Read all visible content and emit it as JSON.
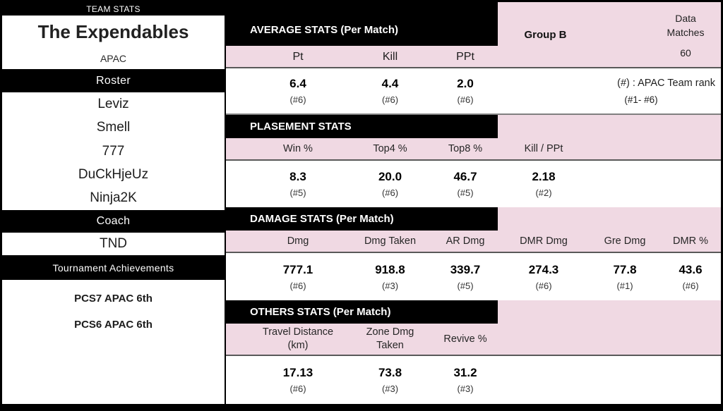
{
  "colors": {
    "pink": "#F0D9E3",
    "bar": "#000000",
    "separator": "#595959"
  },
  "left_panel": {
    "team_stats_label": "TEAM STATS",
    "team_name": "The Expendables",
    "region": "APAC",
    "roster_label": "Roster",
    "players": [
      "Leviz",
      "Smell",
      "777",
      "DuCkHjeUz",
      "Ninja2K"
    ],
    "coach_label": "Coach",
    "coach_name": "TND",
    "achievements_label": "Tournament Achievements",
    "achievements": [
      "PCS7 APAC 6th",
      "PCS6 APAC 6th"
    ]
  },
  "info": {
    "group": "Group B",
    "data_matches_line1": "Data",
    "data_matches_line2": "Matches",
    "data_matches_value": "60",
    "rank_note": "(#) : APAC Team rank",
    "rank_range": "(#1- #6)"
  },
  "sections": {
    "average": {
      "title": "AVERAGE STATS (Per Match)",
      "cols": [
        {
          "label": "Pt",
          "value": "6.4",
          "rank": "(#6)"
        },
        {
          "label": "Kill",
          "value": "4.4",
          "rank": "(#6)"
        },
        {
          "label": "PPt",
          "value": "2.0",
          "rank": "(#6)"
        }
      ]
    },
    "placement": {
      "title": "PLASEMENT STATS",
      "cols": [
        {
          "label": "Win %",
          "value": "8.3",
          "rank": "(#5)"
        },
        {
          "label": "Top4 %",
          "value": "20.0",
          "rank": "(#6)"
        },
        {
          "label": "Top8 %",
          "value": "46.7",
          "rank": "(#5)"
        },
        {
          "label": "Kill / PPt",
          "value": "2.18",
          "rank": "(#2)"
        }
      ]
    },
    "damage": {
      "title": "DAMAGE STATS (Per Match)",
      "cols": [
        {
          "label": "Dmg",
          "value": "777.1",
          "rank": "(#6)"
        },
        {
          "label": "Dmg Taken",
          "value": "918.8",
          "rank": "(#3)"
        },
        {
          "label": "AR Dmg",
          "value": "339.7",
          "rank": "(#5)"
        },
        {
          "label": "DMR Dmg",
          "value": "274.3",
          "rank": "(#6)"
        },
        {
          "label": "Gre Dmg",
          "value": "77.8",
          "rank": "(#1)"
        },
        {
          "label": "DMR %",
          "value": "43.6",
          "rank": "(#6)"
        }
      ]
    },
    "others": {
      "title": "OTHERS STATS (Per Match)",
      "cols": [
        {
          "label": "Travel Distance",
          "label2": "(km)",
          "value": "17.13",
          "rank": "(#6)"
        },
        {
          "label": "Zone Dmg",
          "label2": "Taken",
          "value": "73.8",
          "rank": "(#3)"
        },
        {
          "label": "Revive %",
          "label2": "",
          "value": "31.2",
          "rank": "(#3)"
        }
      ]
    }
  }
}
